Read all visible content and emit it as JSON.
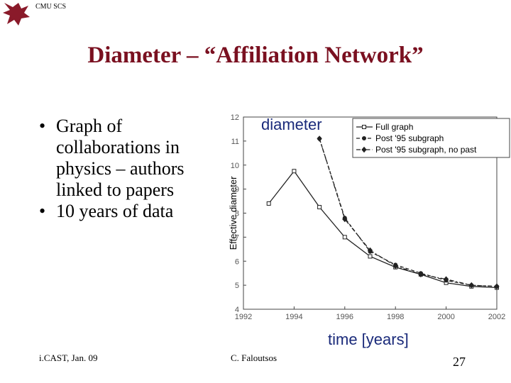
{
  "header": {
    "org": "CMU SCS",
    "title": "Diameter – “Affiliation Network”"
  },
  "bullets": [
    "Graph of collaborations in physics – authors linked to papers",
    "10 years of data"
  ],
  "footer": {
    "left": "i.CAST, Jan. 09",
    "center": "C. Faloutsos",
    "page": "27"
  },
  "chart_data": {
    "type": "line",
    "y_label": "Effective diameter",
    "annotations": [
      "diameter",
      "time [years]"
    ],
    "xlim": [
      1992,
      2002
    ],
    "xticks": [
      1992,
      1994,
      1996,
      1998,
      2000,
      2002
    ],
    "ylim": [
      4,
      12
    ],
    "yticks": [
      4,
      5,
      6,
      7,
      8,
      9,
      10,
      11,
      12
    ],
    "legend": "upper right",
    "series": [
      {
        "name": "Full graph",
        "color": "#222222",
        "marker": "square",
        "dash": "solid",
        "x": [
          1993,
          1994,
          1995,
          1996,
          1997,
          1998,
          1999,
          2000,
          2001,
          2002
        ],
        "values": [
          8.4,
          9.75,
          8.25,
          7.0,
          6.2,
          5.75,
          5.45,
          5.1,
          4.95,
          4.9
        ]
      },
      {
        "name": "Post '95 subgraph",
        "color": "#222222",
        "marker": "circle",
        "dash": "dashed",
        "x": [
          1995,
          1996,
          1997,
          1998,
          1999,
          2000,
          2001,
          2002
        ],
        "values": [
          11.1,
          7.8,
          6.4,
          5.85,
          5.5,
          5.2,
          5.0,
          4.95
        ]
      },
      {
        "name": "Post '95 subgraph, no past",
        "color": "#222222",
        "marker": "diamond",
        "dash": "dashdot",
        "x": [
          1995,
          1996,
          1997,
          1998,
          1999,
          2000,
          2001,
          2002
        ],
        "values": [
          11.1,
          7.75,
          6.45,
          5.8,
          5.45,
          5.25,
          5.0,
          4.95
        ]
      }
    ]
  }
}
